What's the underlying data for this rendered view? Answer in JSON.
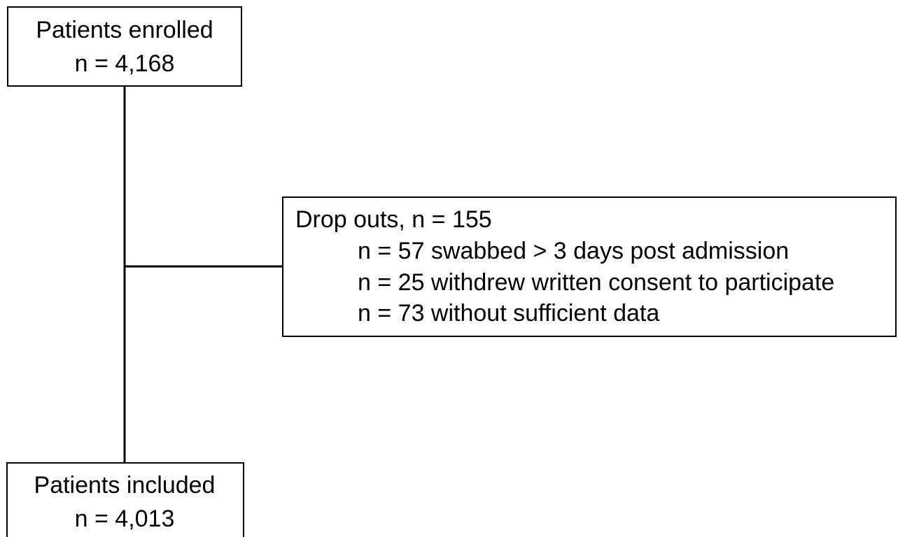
{
  "nodes": [
    {
      "lines": [
        "Patients enrolled",
        "n = 4,168"
      ]
    },
    {
      "lines": [
        "Drop outs, n = 155",
        "n = 57 swabbed > 3 days post admission",
        "n = 25 withdrew written consent to participate",
        "n = 73 without sufficient data"
      ]
    },
    {
      "lines": [
        "Patients included",
        "n = 4,013"
      ]
    }
  ]
}
